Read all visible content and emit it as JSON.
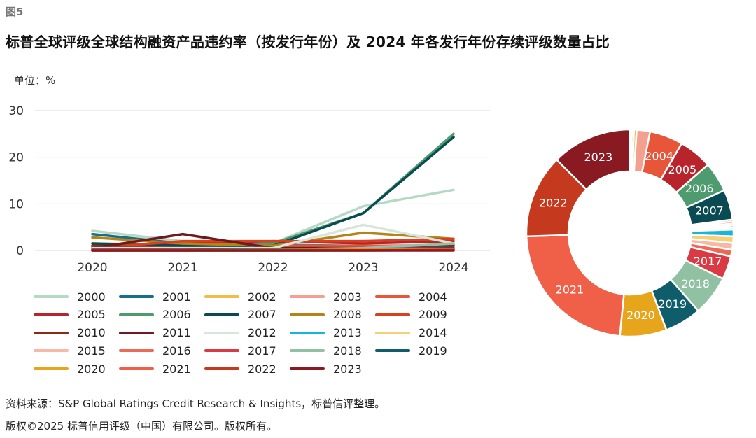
{
  "figure_label": "图5",
  "title": "标普全球评级全球结构融资产品违约率（按发行年份）及 2024 年各发行年份存续评级数量占比",
  "unit_label": "单位：%",
  "source": "资料来源：S&P Global Ratings Credit Research & Insights，标普信评整理。",
  "copyright": "版权©2025 标普信用评级（中国）有限公司。版权所有。",
  "chart_data": [
    {
      "type": "line",
      "title": "标普全球评级全球结构融资产品违约率（按发行年份）",
      "ylabel": "%",
      "ylim": [
        0,
        30
      ],
      "yticks": [
        "0",
        "10",
        "20",
        "30"
      ],
      "categories": [
        "2020",
        "2021",
        "2022",
        "2023",
        "2024"
      ],
      "grid": true,
      "legend_position": "bottom",
      "series": [
        {
          "name": "2000",
          "color": "#b5d9c4",
          "values": [
            4.2,
            2.0,
            1.5,
            9.5,
            13.0
          ]
        },
        {
          "name": "2001",
          "color": "#16708a",
          "values": [
            3.5,
            1.5,
            1.2,
            1.0,
            1.2
          ]
        },
        {
          "name": "2002",
          "color": "#f0bd4a",
          "values": [
            1.5,
            1.2,
            1.0,
            1.0,
            1.0
          ]
        },
        {
          "name": "2003",
          "color": "#f4a090",
          "values": [
            1.0,
            1.0,
            1.0,
            1.0,
            1.2
          ]
        },
        {
          "name": "2004",
          "color": "#e8563a",
          "values": [
            0.8,
            1.5,
            1.0,
            1.0,
            0.5
          ]
        },
        {
          "name": "2005",
          "color": "#b8242c",
          "values": [
            1.0,
            1.5,
            2.0,
            1.5,
            2.0
          ]
        },
        {
          "name": "2006",
          "color": "#4d9b6e",
          "values": [
            1.0,
            1.0,
            1.5,
            8.0,
            25.0
          ]
        },
        {
          "name": "2007",
          "color": "#0a4a52",
          "values": [
            1.5,
            1.0,
            1.0,
            8.0,
            24.3
          ]
        },
        {
          "name": "2008",
          "color": "#b58318",
          "values": [
            2.8,
            1.5,
            1.0,
            3.8,
            2.5
          ]
        },
        {
          "name": "2009",
          "color": "#d9401f",
          "values": [
            0.5,
            2.0,
            2.0,
            2.0,
            2.5
          ]
        },
        {
          "name": "2010",
          "color": "#8c2a14",
          "values": [
            1.0,
            0.5,
            0.5,
            0.5,
            1.0
          ]
        },
        {
          "name": "2011",
          "color": "#6e1a22",
          "values": [
            0.5,
            3.5,
            0.5,
            0.5,
            0.5
          ]
        },
        {
          "name": "2012",
          "color": "#d6e6dc",
          "values": [
            0.5,
            0.5,
            0.5,
            5.5,
            1.5
          ]
        },
        {
          "name": "2013",
          "color": "#17b5d6",
          "values": [
            0.3,
            0.3,
            0.3,
            0.3,
            0.3
          ]
        },
        {
          "name": "2014",
          "color": "#f7cf75",
          "values": [
            0.3,
            0.3,
            0.3,
            0.3,
            0.3
          ]
        },
        {
          "name": "2015",
          "color": "#f8b8a8",
          "values": [
            0.3,
            0.3,
            0.3,
            0.3,
            0.3
          ]
        },
        {
          "name": "2016",
          "color": "#ec6a55",
          "values": [
            0.2,
            0.2,
            0.3,
            0.3,
            0.3
          ]
        },
        {
          "name": "2017",
          "color": "#d93a44",
          "values": [
            0.2,
            0.2,
            0.2,
            0.5,
            0.5
          ]
        },
        {
          "name": "2018",
          "color": "#8fc1a2",
          "values": [
            0.1,
            0.1,
            0.2,
            0.5,
            1.5
          ]
        },
        {
          "name": "2019",
          "color": "#0f5d6b",
          "values": [
            0.1,
            0.1,
            0.2,
            0.3,
            0.5
          ]
        },
        {
          "name": "2020",
          "color": "#e7a51c",
          "values": [
            0.0,
            0.0,
            0.1,
            0.2,
            0.3
          ]
        },
        {
          "name": "2021",
          "color": "#f06048",
          "values": [
            0.0,
            0.0,
            0.0,
            0.1,
            0.2
          ]
        },
        {
          "name": "2022",
          "color": "#c53a1e",
          "values": [
            0.0,
            0.0,
            0.0,
            0.0,
            0.1
          ]
        },
        {
          "name": "2023",
          "color": "#8a1a22",
          "values": [
            0.0,
            0.0,
            0.0,
            0.0,
            0.0
          ]
        }
      ]
    },
    {
      "type": "pie",
      "donut": true,
      "title": "2024 年各发行年份存续评级数量占比",
      "slices": [
        {
          "name": "2000",
          "value": 0.3,
          "color": "#b5d9c4",
          "label": ""
        },
        {
          "name": "2001",
          "value": 0.3,
          "color": "#16708a",
          "label": ""
        },
        {
          "name": "2002",
          "value": 0.4,
          "color": "#f0bd4a",
          "label": ""
        },
        {
          "name": "2003",
          "value": 2.0,
          "color": "#f4a090",
          "label": ""
        },
        {
          "name": "2004",
          "value": 5.0,
          "color": "#e8563a",
          "label": "2004"
        },
        {
          "name": "2005",
          "value": 5.0,
          "color": "#b8242c",
          "label": "2005"
        },
        {
          "name": "2006",
          "value": 4.5,
          "color": "#4d9b6e",
          "label": "2006"
        },
        {
          "name": "2007",
          "value": 4.5,
          "color": "#0a4a52",
          "label": "2007"
        },
        {
          "name": "2008",
          "value": 0.3,
          "color": "#b58318",
          "label": ""
        },
        {
          "name": "2009",
          "value": 0.3,
          "color": "#d9401f",
          "label": ""
        },
        {
          "name": "2010",
          "value": 0.3,
          "color": "#8c2a14",
          "label": ""
        },
        {
          "name": "2011",
          "value": 0.3,
          "color": "#6e1a22",
          "label": ""
        },
        {
          "name": "2012",
          "value": 0.3,
          "color": "#d6e6dc",
          "label": ""
        },
        {
          "name": "2013",
          "value": 1.0,
          "color": "#17b5d6",
          "label": ""
        },
        {
          "name": "2014",
          "value": 1.0,
          "color": "#f7cf75",
          "label": ""
        },
        {
          "name": "2015",
          "value": 1.0,
          "color": "#f8b8a8",
          "label": ""
        },
        {
          "name": "2016",
          "value": 1.0,
          "color": "#ec6a55",
          "label": ""
        },
        {
          "name": "2017",
          "value": 3.5,
          "color": "#d93a44",
          "label": "2017"
        },
        {
          "name": "2018",
          "value": 6.0,
          "color": "#8fc1a2",
          "label": "2018"
        },
        {
          "name": "2019",
          "value": 5.5,
          "color": "#0f5d6b",
          "label": "2019"
        },
        {
          "name": "2020",
          "value": 7.0,
          "color": "#e7a51c",
          "label": "2020"
        },
        {
          "name": "2021",
          "value": 22.0,
          "color": "#f06048",
          "label": "2021"
        },
        {
          "name": "2022",
          "value": 12.5,
          "color": "#c53a1e",
          "label": "2022"
        },
        {
          "name": "2023",
          "value": 12.0,
          "color": "#8a1a22",
          "label": "2023"
        }
      ]
    }
  ]
}
